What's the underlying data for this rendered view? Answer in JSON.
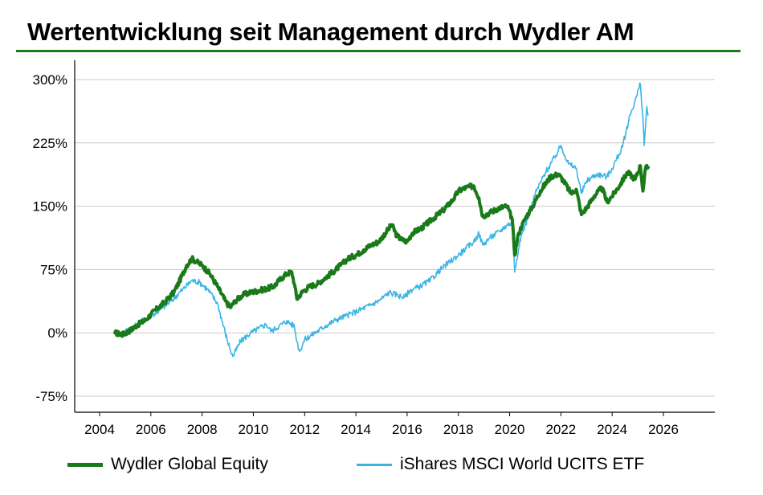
{
  "title": "Wertentwicklung seit Management durch Wydler AM",
  "chart_data": {
    "type": "line",
    "y_ticks": [
      "300%",
      "225%",
      "150%",
      "75%",
      "0%",
      "-75%"
    ],
    "y_tick_values": [
      300,
      225,
      150,
      75,
      0,
      -75
    ],
    "x_ticks": [
      "2004",
      "2006",
      "2008",
      "2010",
      "2012",
      "2014",
      "2016",
      "2018",
      "2020",
      "2022",
      "2024",
      "2026"
    ],
    "x_tick_values": [
      2004,
      2006,
      2008,
      2010,
      2012,
      2014,
      2016,
      2018,
      2020,
      2022,
      2024,
      2026
    ],
    "xlim": [
      2004,
      2026
    ],
    "ylim": [
      -100,
      300
    ],
    "grid": "horizontal",
    "legend_position": "bottom",
    "series": [
      {
        "name": "Wydler Global Equity",
        "color": "#1a7a1a",
        "points": [
          [
            2004.6,
            0
          ],
          [
            2004.9,
            -2
          ],
          [
            2005.2,
            3
          ],
          [
            2005.5,
            10
          ],
          [
            2005.8,
            15
          ],
          [
            2006.0,
            22
          ],
          [
            2006.3,
            30
          ],
          [
            2006.6,
            38
          ],
          [
            2006.9,
            48
          ],
          [
            2007.1,
            60
          ],
          [
            2007.4,
            80
          ],
          [
            2007.6,
            88
          ],
          [
            2007.8,
            84
          ],
          [
            2008.0,
            80
          ],
          [
            2008.3,
            70
          ],
          [
            2008.6,
            55
          ],
          [
            2008.9,
            38
          ],
          [
            2009.1,
            30
          ],
          [
            2009.3,
            38
          ],
          [
            2009.6,
            45
          ],
          [
            2009.9,
            48
          ],
          [
            2010.2,
            50
          ],
          [
            2010.5,
            52
          ],
          [
            2010.8,
            55
          ],
          [
            2011.0,
            62
          ],
          [
            2011.3,
            70
          ],
          [
            2011.5,
            72
          ],
          [
            2011.6,
            58
          ],
          [
            2011.7,
            40
          ],
          [
            2011.9,
            48
          ],
          [
            2012.2,
            55
          ],
          [
            2012.5,
            58
          ],
          [
            2012.8,
            65
          ],
          [
            2013.1,
            72
          ],
          [
            2013.4,
            80
          ],
          [
            2013.7,
            88
          ],
          [
            2014.0,
            92
          ],
          [
            2014.3,
            98
          ],
          [
            2014.6,
            104
          ],
          [
            2014.9,
            108
          ],
          [
            2015.2,
            120
          ],
          [
            2015.4,
            128
          ],
          [
            2015.6,
            115
          ],
          [
            2015.8,
            110
          ],
          [
            2016.0,
            108
          ],
          [
            2016.2,
            118
          ],
          [
            2016.6,
            125
          ],
          [
            2017.0,
            135
          ],
          [
            2017.4,
            145
          ],
          [
            2017.8,
            158
          ],
          [
            2018.0,
            168
          ],
          [
            2018.3,
            172
          ],
          [
            2018.6,
            174
          ],
          [
            2018.8,
            160
          ],
          [
            2018.95,
            138
          ],
          [
            2019.2,
            142
          ],
          [
            2019.6,
            148
          ],
          [
            2019.9,
            150
          ],
          [
            2020.1,
            135
          ],
          [
            2020.2,
            92
          ],
          [
            2020.35,
            118
          ],
          [
            2020.6,
            135
          ],
          [
            2020.9,
            150
          ],
          [
            2021.2,
            168
          ],
          [
            2021.6,
            185
          ],
          [
            2021.9,
            188
          ],
          [
            2022.1,
            180
          ],
          [
            2022.4,
            165
          ],
          [
            2022.6,
            170
          ],
          [
            2022.8,
            140
          ],
          [
            2023.0,
            148
          ],
          [
            2023.3,
            162
          ],
          [
            2023.6,
            172
          ],
          [
            2023.8,
            155
          ],
          [
            2024.0,
            162
          ],
          [
            2024.3,
            175
          ],
          [
            2024.6,
            190
          ],
          [
            2024.9,
            182
          ],
          [
            2025.1,
            198
          ],
          [
            2025.2,
            168
          ],
          [
            2025.3,
            195
          ],
          [
            2025.4,
            196
          ]
        ]
      },
      {
        "name": "iShares MSCI World UCITS ETF",
        "color": "#3bb4e6",
        "points": [
          [
            2004.6,
            0
          ],
          [
            2004.9,
            0
          ],
          [
            2005.2,
            5
          ],
          [
            2005.5,
            10
          ],
          [
            2005.8,
            17
          ],
          [
            2006.1,
            22
          ],
          [
            2006.4,
            28
          ],
          [
            2006.8,
            38
          ],
          [
            2007.2,
            50
          ],
          [
            2007.6,
            62
          ],
          [
            2007.9,
            60
          ],
          [
            2008.2,
            52
          ],
          [
            2008.6,
            35
          ],
          [
            2008.9,
            0
          ],
          [
            2009.1,
            -20
          ],
          [
            2009.2,
            -28
          ],
          [
            2009.5,
            -10
          ],
          [
            2009.9,
            0
          ],
          [
            2010.2,
            5
          ],
          [
            2010.5,
            10
          ],
          [
            2010.7,
            2
          ],
          [
            2011.0,
            8
          ],
          [
            2011.3,
            14
          ],
          [
            2011.6,
            8
          ],
          [
            2011.7,
            -10
          ],
          [
            2011.8,
            -22
          ],
          [
            2012.0,
            -8
          ],
          [
            2012.4,
            0
          ],
          [
            2012.8,
            8
          ],
          [
            2013.2,
            15
          ],
          [
            2013.6,
            20
          ],
          [
            2014.0,
            25
          ],
          [
            2014.5,
            32
          ],
          [
            2014.9,
            38
          ],
          [
            2015.3,
            48
          ],
          [
            2015.6,
            45
          ],
          [
            2015.9,
            42
          ],
          [
            2016.1,
            50
          ],
          [
            2016.5,
            55
          ],
          [
            2016.9,
            62
          ],
          [
            2017.3,
            75
          ],
          [
            2017.7,
            85
          ],
          [
            2018.0,
            92
          ],
          [
            2018.3,
            100
          ],
          [
            2018.6,
            108
          ],
          [
            2018.8,
            118
          ],
          [
            2018.95,
            104
          ],
          [
            2019.2,
            112
          ],
          [
            2019.6,
            120
          ],
          [
            2019.9,
            128
          ],
          [
            2020.1,
            130
          ],
          [
            2020.2,
            72
          ],
          [
            2020.4,
            110
          ],
          [
            2020.7,
            135
          ],
          [
            2021.0,
            165
          ],
          [
            2021.4,
            190
          ],
          [
            2021.8,
            210
          ],
          [
            2022.0,
            222
          ],
          [
            2022.3,
            200
          ],
          [
            2022.6,
            195
          ],
          [
            2022.8,
            165
          ],
          [
            2023.0,
            180
          ],
          [
            2023.4,
            188
          ],
          [
            2023.8,
            185
          ],
          [
            2024.0,
            195
          ],
          [
            2024.4,
            220
          ],
          [
            2024.7,
            258
          ],
          [
            2024.9,
            275
          ],
          [
            2025.1,
            295
          ],
          [
            2025.2,
            255
          ],
          [
            2025.25,
            222
          ],
          [
            2025.35,
            268
          ],
          [
            2025.4,
            258
          ]
        ]
      }
    ]
  },
  "legend": {
    "items": [
      {
        "label": "Wydler Global Equity",
        "color": "#1a7a1a"
      },
      {
        "label": "iShares MSCI World UCITS ETF",
        "color": "#3bb4e6"
      }
    ]
  }
}
